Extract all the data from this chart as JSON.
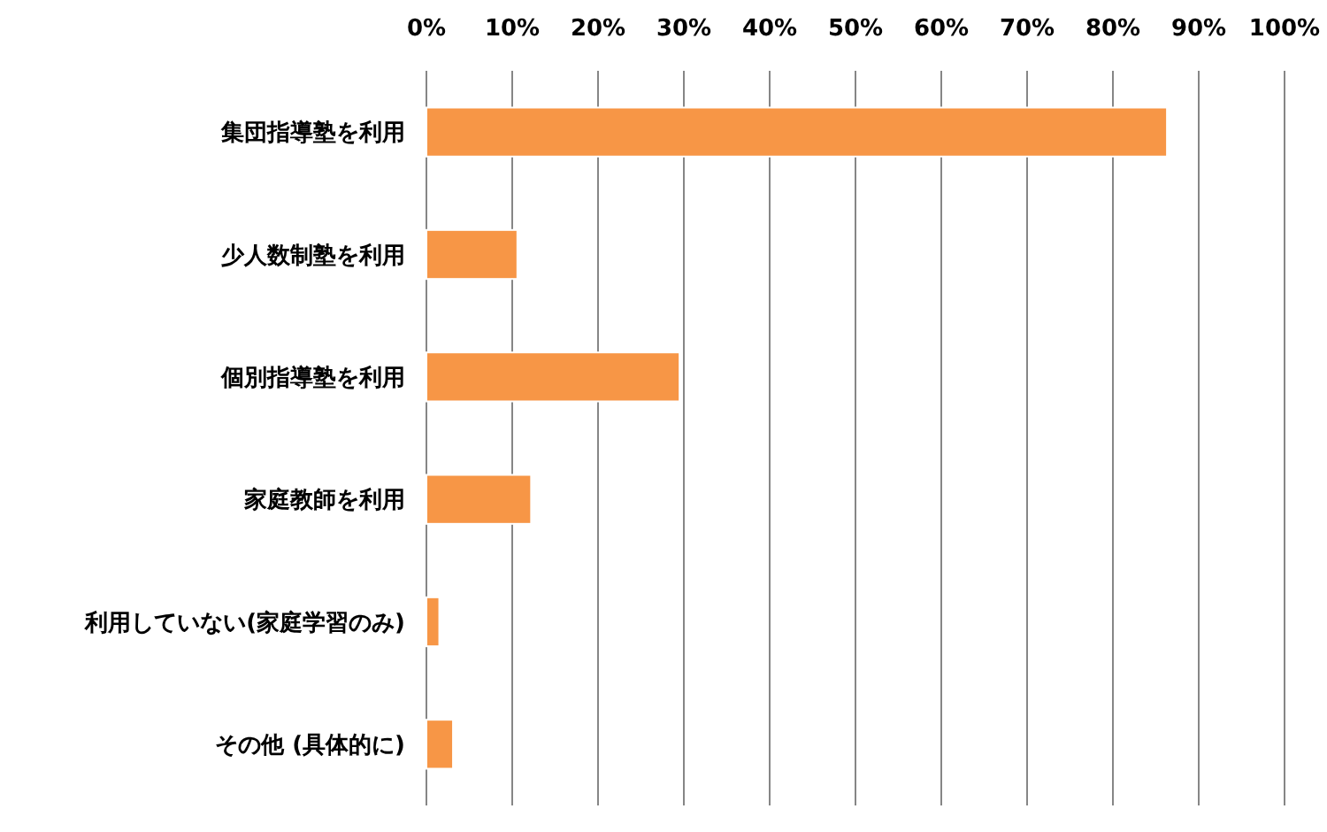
{
  "chart_data": {
    "type": "bar",
    "orientation": "horizontal",
    "categories": [
      "集団指導塾を利用",
      "少人数制塾を利用",
      "個別指導塾を利用",
      "家庭教師を利用",
      "利用していない(家庭学習のみ)",
      "その他 (具体的に)"
    ],
    "values": [
      86.3,
      10.6,
      29.5,
      12.2,
      1.5,
      3.1
    ],
    "color": "#f79646",
    "xlim": [
      0,
      100
    ],
    "xticks": [
      {
        "value": 0,
        "label": "0%"
      },
      {
        "value": 10,
        "label": "10%"
      },
      {
        "value": 20,
        "label": "20%"
      },
      {
        "value": 30,
        "label": "30%"
      },
      {
        "value": 40,
        "label": "40%"
      },
      {
        "value": 50,
        "label": "50%"
      },
      {
        "value": 60,
        "label": "60%"
      },
      {
        "value": 70,
        "label": "70%"
      },
      {
        "value": 80,
        "label": "80%"
      },
      {
        "value": 90,
        "label": "90%"
      },
      {
        "value": 100,
        "label": "100%"
      }
    ],
    "grid": "x"
  }
}
